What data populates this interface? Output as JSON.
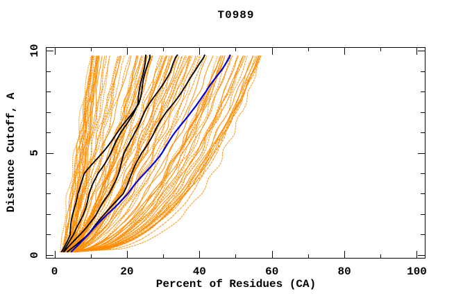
{
  "title": "T0989",
  "colors": {
    "background": "#FFFFFF",
    "axis": "#000000",
    "ensemble": "#FF8C00",
    "highlight": "#000000",
    "special": "#0000DD"
  },
  "chart_data": {
    "type": "line",
    "title": "T0989",
    "xlabel": "Percent of Residues (CA)",
    "ylabel": "Distance Cutoff, A",
    "xlim": [
      -2.4,
      102.4
    ],
    "ylim": [
      -0.17,
      10.17
    ],
    "grid": false,
    "legend": "none",
    "x_ticks_major": [
      0,
      20,
      40,
      60,
      80,
      100
    ],
    "x_ticks_minor": [
      10,
      30,
      50,
      70,
      90
    ],
    "y_ticks_major": [
      0,
      5,
      10
    ],
    "y_ticks_minor": [
      1,
      2,
      3,
      4,
      6,
      7,
      8,
      9
    ],
    "series": [
      {
        "name": "model-black-1",
        "color_role": "highlight",
        "y": [
          0.15,
          1,
          2,
          3,
          4,
          5,
          6,
          6.8,
          7.4,
          8,
          9,
          9.8
        ],
        "x": [
          1.8,
          4.2,
          5.2,
          6.2,
          8.5,
          13.0,
          17.5,
          21.0,
          23.0,
          24.0,
          25.3,
          26.3
        ]
      },
      {
        "name": "model-black-2",
        "color_role": "highlight",
        "y": [
          0.15,
          1,
          2,
          3,
          4,
          5,
          6,
          7,
          7.4,
          8,
          9,
          9.8
        ],
        "x": [
          2.2,
          5.5,
          7.8,
          9.7,
          12.0,
          15.5,
          18.5,
          21.8,
          23.0,
          23.6,
          24.4,
          25.2
        ]
      },
      {
        "name": "model-black-3",
        "color_role": "highlight",
        "y": [
          0.15,
          1,
          2,
          3,
          4,
          5,
          6,
          7,
          8,
          9,
          9.8
        ],
        "x": [
          2.8,
          7.0,
          11.5,
          15.2,
          17.5,
          19.5,
          22.0,
          25.0,
          28.5,
          32.0,
          34.0
        ]
      },
      {
        "name": "model-black-4",
        "color_role": "highlight",
        "y": [
          0.15,
          1,
          2,
          3,
          4,
          5,
          6,
          7,
          8,
          9,
          9.8
        ],
        "x": [
          3.5,
          9.0,
          14.0,
          18.7,
          21.5,
          24.0,
          27.5,
          31.0,
          35.0,
          39.0,
          41.5
        ]
      },
      {
        "name": "model-blue",
        "color_role": "special",
        "y": [
          0.15,
          1,
          2,
          3,
          4,
          5,
          6,
          7,
          8,
          9,
          9.8
        ],
        "x": [
          4.3,
          9.5,
          14.5,
          20.2,
          25.0,
          29.5,
          33.5,
          37.5,
          42.0,
          45.8,
          48.5
        ]
      }
    ],
    "ensemble": {
      "name": "all-models",
      "color_role": "ensemble",
      "count": 112,
      "seed": 7,
      "y_start": 0.15,
      "y_end": 9.8,
      "start_x_range": [
        1.3,
        6.1
      ],
      "end_x_range": [
        10,
        57
      ]
    }
  }
}
